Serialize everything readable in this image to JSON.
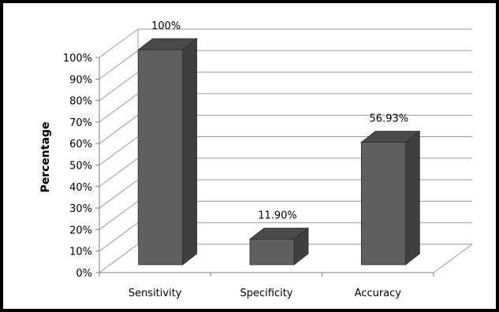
{
  "chart_data": {
    "type": "bar",
    "categories": [
      "Sensitivity",
      "Specificity",
      "Accuracy"
    ],
    "values": [
      100,
      11.9,
      56.93
    ],
    "data_labels": [
      "100%",
      "11.90%",
      "56.93%"
    ],
    "title": "",
    "xlabel": "",
    "ylabel": "Percentage",
    "ylim": [
      0,
      100
    ],
    "ytick_labels": [
      "0%",
      "10%",
      "20%",
      "30%",
      "40%",
      "50%",
      "60%",
      "70%",
      "80%",
      "90%",
      "100%"
    ],
    "grid": true,
    "legend": "none",
    "style": "3d-column",
    "colors": {
      "bar_front": "#5f5f5f",
      "bar_side": "#3f3f3f",
      "bar_top": "#4a4a4a",
      "grid": "#9a9a9a",
      "axis": "#7f7f7f",
      "text": "#000000"
    }
  }
}
